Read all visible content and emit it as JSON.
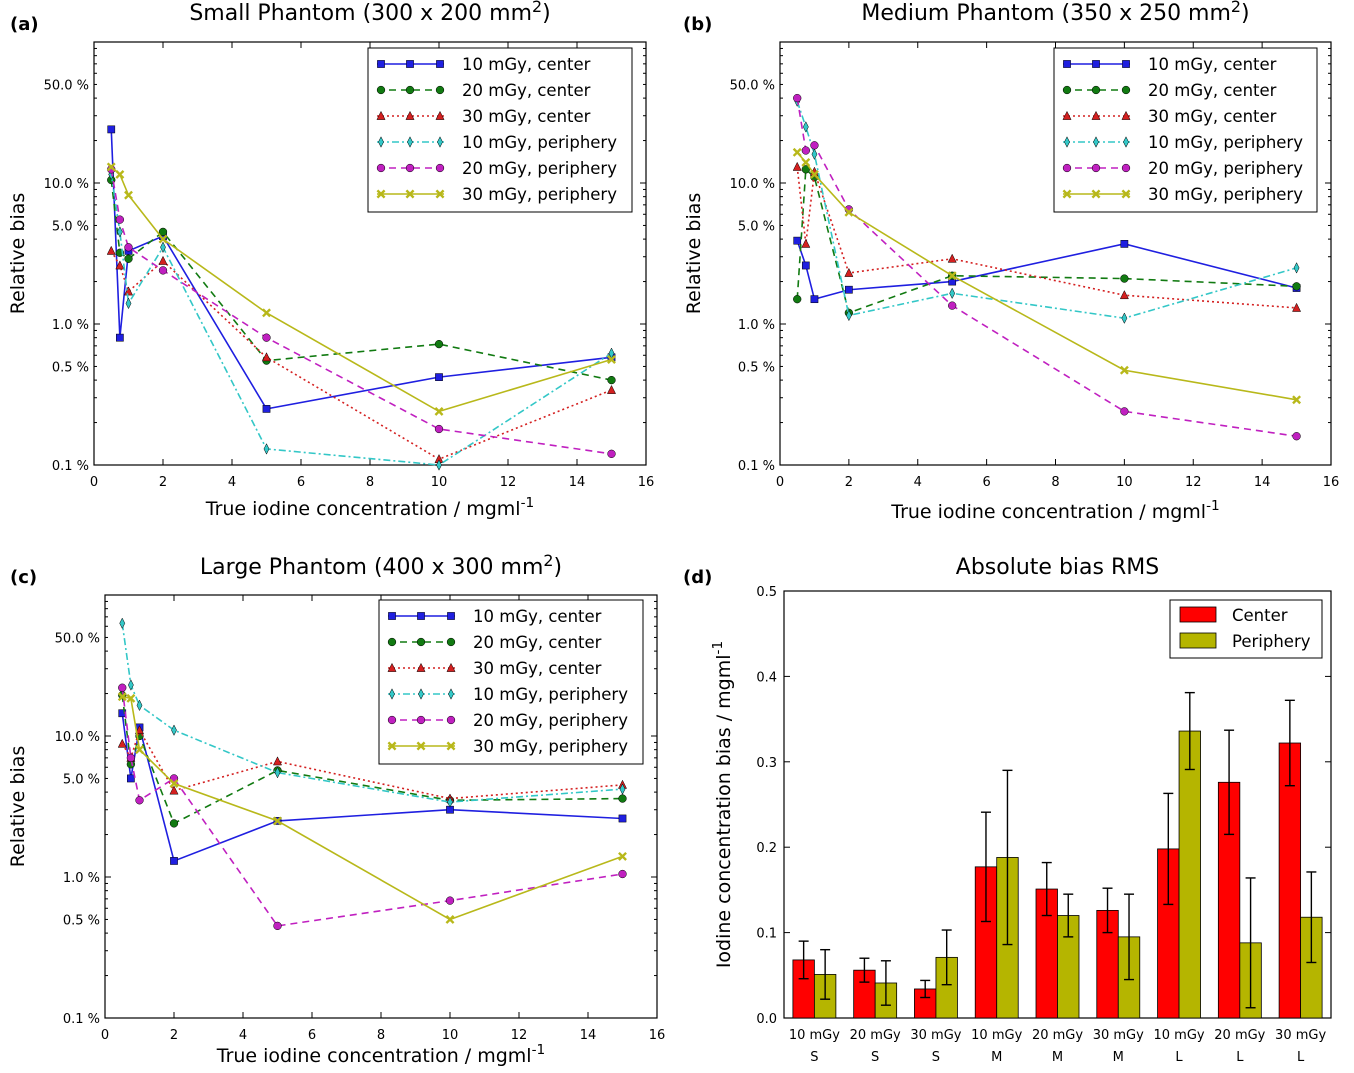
{
  "figure": {
    "colors": {
      "10c": "#1f1fe0",
      "20c": "#117a11",
      "30c": "#d42020",
      "10p": "#33c7c7",
      "20p": "#c020c0",
      "30p": "#b8b81a",
      "center_bar": "#ff0000",
      "periphery_bar": "#b5b500"
    }
  },
  "chart_data": [
    {
      "panel": "(a)",
      "type": "line",
      "title_main": "Small Phantom (300 x 200 mm",
      "title_sup": "2",
      "title_close": ")",
      "xlabel_main": "True iodine concentration / mgml",
      "xlabel_sup": "-1",
      "ylabel": "Relative bias",
      "xlim": [
        0,
        16
      ],
      "ylim": [
        0.1,
        100
      ],
      "yscale": "log",
      "xticks": [
        "0",
        "2",
        "4",
        "6",
        "8",
        "10",
        "12",
        "14",
        "16"
      ],
      "yticks": [
        {
          "value": 0.1,
          "label": "0.1 %"
        },
        {
          "value": 0.5,
          "label": "0.5 %"
        },
        {
          "value": 1.0,
          "label": "1.0 %"
        },
        {
          "value": 5.0,
          "label": "5.0 %"
        },
        {
          "value": 10.0,
          "label": "10.0 %"
        },
        {
          "value": 50.0,
          "label": "50.0 %"
        }
      ],
      "legend_position": "top-right",
      "series": [
        {
          "name": "10 mGy, center",
          "style": "10c",
          "x": [
            0.5,
            0.75,
            1,
            2,
            5,
            10,
            15
          ],
          "y": [
            24,
            0.8,
            3.3,
            4.2,
            0.25,
            0.42,
            0.58
          ]
        },
        {
          "name": "20 mGy, center",
          "style": "20c",
          "x": [
            0.5,
            0.75,
            1,
            2,
            5,
            10,
            15
          ],
          "y": [
            10.5,
            3.2,
            2.9,
            4.5,
            0.55,
            0.72,
            0.4
          ]
        },
        {
          "name": "30 mGy, center",
          "style": "30c",
          "x": [
            0.5,
            0.75,
            1,
            2,
            5,
            10,
            15
          ],
          "y": [
            3.3,
            2.6,
            1.7,
            2.8,
            0.58,
            0.11,
            0.34
          ]
        },
        {
          "name": "10 mGy, periphery",
          "style": "10p",
          "x": [
            0.5,
            0.75,
            1,
            2,
            5,
            10,
            15
          ],
          "y": [
            11.5,
            4.5,
            1.4,
            3.5,
            0.13,
            0.1,
            0.62
          ]
        },
        {
          "name": "20 mGy, periphery",
          "style": "20p",
          "x": [
            0.5,
            0.75,
            1,
            2,
            5,
            10,
            15
          ],
          "y": [
            12.5,
            5.5,
            3.5,
            2.4,
            0.8,
            0.18,
            0.12
          ]
        },
        {
          "name": "30 mGy, periphery",
          "style": "30p",
          "x": [
            0.5,
            0.75,
            1,
            2,
            5,
            10,
            15
          ],
          "y": [
            13,
            11.5,
            8.2,
            4.0,
            1.2,
            0.24,
            0.56
          ]
        }
      ]
    },
    {
      "panel": "(b)",
      "type": "line",
      "title_main": "Medium Phantom (350 x 250 mm",
      "title_sup": "2",
      "title_close": ")",
      "xlabel_main": "True iodine concentration / mgml",
      "xlabel_sup": "-1",
      "ylabel": "Relative bias",
      "xlim": [
        0,
        16
      ],
      "ylim": [
        0.1,
        100
      ],
      "yscale": "log",
      "xticks": [
        "0",
        "2",
        "4",
        "6",
        "8",
        "10",
        "12",
        "14",
        "16"
      ],
      "yticks": [
        {
          "value": 0.1,
          "label": "0.1 %"
        },
        {
          "value": 0.5,
          "label": "0.5 %"
        },
        {
          "value": 1.0,
          "label": "1.0 %"
        },
        {
          "value": 5.0,
          "label": "5.0 %"
        },
        {
          "value": 10.0,
          "label": "10.0 %"
        },
        {
          "value": 50.0,
          "label": "50.0 %"
        }
      ],
      "legend_position": "top-right",
      "series": [
        {
          "name": "10 mGy, center",
          "style": "10c",
          "x": [
            0.5,
            0.75,
            1,
            2,
            5,
            10,
            15
          ],
          "y": [
            3.9,
            2.6,
            1.5,
            1.75,
            2.0,
            3.7,
            1.8
          ]
        },
        {
          "name": "20 mGy, center",
          "style": "20c",
          "x": [
            0.5,
            0.75,
            1,
            2,
            5,
            10,
            15
          ],
          "y": [
            1.5,
            12.5,
            11.0,
            1.2,
            2.2,
            2.1,
            1.85
          ]
        },
        {
          "name": "30 mGy, center",
          "style": "30c",
          "x": [
            0.5,
            0.75,
            1,
            2,
            5,
            10,
            15
          ],
          "y": [
            13,
            3.7,
            12.0,
            2.3,
            2.9,
            1.6,
            1.3
          ]
        },
        {
          "name": "10 mGy, periphery",
          "style": "10p",
          "x": [
            0.5,
            0.75,
            1,
            2,
            5,
            10,
            15
          ],
          "y": [
            38,
            25,
            16,
            1.15,
            1.65,
            1.1,
            2.5
          ]
        },
        {
          "name": "20 mGy, periphery",
          "style": "20p",
          "x": [
            0.5,
            0.75,
            1,
            2,
            5,
            10,
            15
          ],
          "y": [
            40,
            17,
            18.5,
            6.5,
            1.35,
            0.24,
            0.16
          ]
        },
        {
          "name": "30 mGy, periphery",
          "style": "30p",
          "x": [
            0.5,
            0.75,
            1,
            2,
            5,
            10,
            15
          ],
          "y": [
            16.5,
            14,
            11.5,
            6.2,
            2.2,
            0.47,
            0.29
          ]
        }
      ]
    },
    {
      "panel": "(c)",
      "type": "line",
      "title_main": "Large Phantom (400 x 300 mm",
      "title_sup": "2",
      "title_close": ")",
      "xlabel_main": "True iodine concentration / mgml",
      "xlabel_sup": "-1",
      "ylabel": "Relative bias",
      "xlim": [
        0,
        16
      ],
      "ylim": [
        0.1,
        100
      ],
      "yscale": "log",
      "xticks": [
        "0",
        "2",
        "4",
        "6",
        "8",
        "10",
        "12",
        "14",
        "16"
      ],
      "yticks": [
        {
          "value": 0.1,
          "label": "0.1 %"
        },
        {
          "value": 0.5,
          "label": "0.5 %"
        },
        {
          "value": 1.0,
          "label": "1.0 %"
        },
        {
          "value": 5.0,
          "label": "5.0 %"
        },
        {
          "value": 10.0,
          "label": "10.0 %"
        },
        {
          "value": 50.0,
          "label": "50.0 %"
        }
      ],
      "legend_position": "top-right",
      "series": [
        {
          "name": "10 mGy, center",
          "style": "10c",
          "x": [
            0.5,
            0.75,
            1,
            2,
            5,
            10,
            15
          ],
          "y": [
            14.5,
            5.0,
            11.5,
            1.3,
            2.5,
            3.0,
            2.6
          ]
        },
        {
          "name": "20 mGy, center",
          "style": "20c",
          "x": [
            0.5,
            0.75,
            1,
            2,
            5,
            10,
            15
          ],
          "y": [
            19.5,
            6.3,
            10.0,
            2.4,
            5.7,
            3.5,
            3.6
          ]
        },
        {
          "name": "30 mGy, center",
          "style": "30c",
          "x": [
            0.5,
            0.75,
            1,
            2,
            5,
            10,
            15
          ],
          "y": [
            8.8,
            7.0,
            11.0,
            4.1,
            6.6,
            3.6,
            4.5
          ]
        },
        {
          "name": "10 mGy, periphery",
          "style": "10p",
          "x": [
            0.5,
            0.75,
            1,
            2,
            5,
            10,
            15
          ],
          "y": [
            63,
            23,
            16.5,
            11.0,
            5.5,
            3.4,
            4.2
          ]
        },
        {
          "name": "20 mGy, periphery",
          "style": "20p",
          "x": [
            0.5,
            0.75,
            1,
            2,
            5,
            10,
            15
          ],
          "y": [
            22,
            7.0,
            3.5,
            5.0,
            0.45,
            0.68,
            1.05
          ]
        },
        {
          "name": "30 mGy, periphery",
          "style": "30p",
          "x": [
            0.5,
            0.75,
            1,
            2,
            5,
            10,
            15
          ],
          "y": [
            19,
            18.5,
            8.0,
            4.6,
            2.5,
            0.5,
            1.4
          ]
        }
      ]
    },
    {
      "panel": "(d)",
      "type": "bar",
      "title_main": "Absolute bias RMS",
      "ylabel_main": "Iodine concentration bias / mgml",
      "ylabel_sup": "-1",
      "ylim": [
        0,
        0.5
      ],
      "yticks": [
        "0.0",
        "0.1",
        "0.2",
        "0.3",
        "0.4",
        "0.5"
      ],
      "legend_position": "top-right",
      "categories": [
        {
          "dose": "10 mGy",
          "size": "S"
        },
        {
          "dose": "20 mGy",
          "size": "S"
        },
        {
          "dose": "30 mGy",
          "size": "S"
        },
        {
          "dose": "10 mGy",
          "size": "M"
        },
        {
          "dose": "20 mGy",
          "size": "M"
        },
        {
          "dose": "30 mGy",
          "size": "M"
        },
        {
          "dose": "10 mGy",
          "size": "L"
        },
        {
          "dose": "20 mGy",
          "size": "L"
        },
        {
          "dose": "30 mGy",
          "size": "L"
        }
      ],
      "series": [
        {
          "name": "Center",
          "style": "center_bar",
          "values": [
            0.068,
            0.056,
            0.034,
            0.177,
            0.151,
            0.126,
            0.198,
            0.276,
            0.322
          ],
          "errors": [
            0.022,
            0.014,
            0.01,
            0.064,
            0.031,
            0.026,
            0.065,
            0.061,
            0.05
          ]
        },
        {
          "name": "Periphery",
          "style": "periphery_bar",
          "values": [
            0.051,
            0.041,
            0.071,
            0.188,
            0.12,
            0.095,
            0.336,
            0.088,
            0.118
          ],
          "errors": [
            0.029,
            0.026,
            0.032,
            0.102,
            0.025,
            0.05,
            0.045,
            0.076,
            0.053
          ]
        }
      ]
    }
  ]
}
